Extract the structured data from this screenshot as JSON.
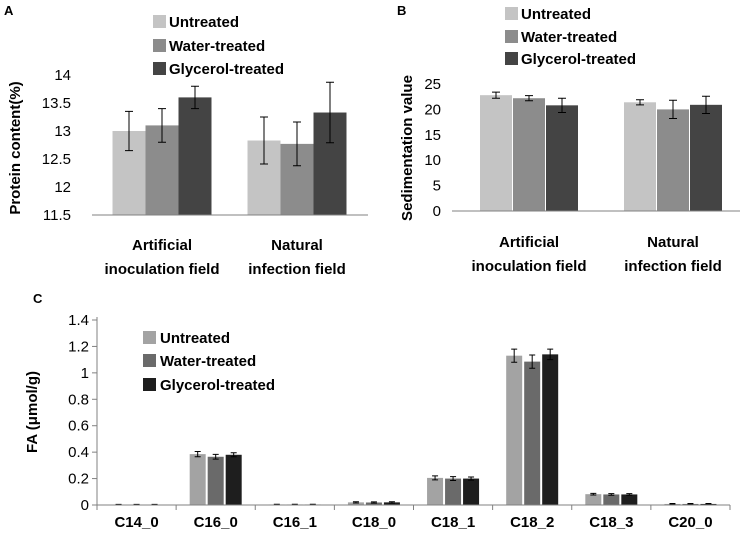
{
  "chart_data": [
    {
      "type": "bar",
      "panel": "A",
      "title": "",
      "xlabel": "",
      "ylabel": "Protein content(%)",
      "ylim": [
        11.5,
        14
      ],
      "yticks": [
        "11.5",
        "12",
        "12.5",
        "13",
        "13.5",
        "14"
      ],
      "categories": [
        [
          "Artificial",
          "inoculation field"
        ],
        [
          "Natural",
          "infection field"
        ]
      ],
      "series": [
        {
          "name": "Untreated",
          "color": "#c4c4c4",
          "values": [
            13.0,
            12.83
          ],
          "errors": [
            0.35,
            0.42
          ]
        },
        {
          "name": "Water-treated",
          "color": "#8c8c8c",
          "values": [
            13.1,
            12.77
          ],
          "errors": [
            0.3,
            0.39
          ]
        },
        {
          "name": "Glycerol-treated",
          "color": "#444444",
          "values": [
            13.6,
            13.33
          ],
          "errors": [
            0.2,
            0.54
          ]
        }
      ],
      "legend": "top"
    },
    {
      "type": "bar",
      "panel": "B",
      "title": "",
      "xlabel": "",
      "ylabel": "Sedimentation value",
      "ylim": [
        0,
        25
      ],
      "yticks": [
        "0",
        "5",
        "10",
        "15",
        "20",
        "25"
      ],
      "categories": [
        [
          "Artificial",
          "inoculation field"
        ],
        [
          "Natural",
          "infection field"
        ]
      ],
      "series": [
        {
          "name": "Untreated",
          "color": "#c4c4c4",
          "values": [
            22.8,
            21.4
          ],
          "errors": [
            0.6,
            0.5
          ]
        },
        {
          "name": "Water-treated",
          "color": "#8c8c8c",
          "values": [
            22.2,
            20.0
          ],
          "errors": [
            0.5,
            1.8
          ]
        },
        {
          "name": "Glycerol-treated",
          "color": "#444444",
          "values": [
            20.8,
            20.9
          ],
          "errors": [
            1.4,
            1.7
          ]
        }
      ],
      "legend": "top"
    },
    {
      "type": "bar",
      "panel": "C",
      "title": "",
      "xlabel": "",
      "ylabel": "FA (μmol/g)",
      "ylim": [
        0,
        1.4
      ],
      "yticks": [
        "0",
        "0.2",
        "0.4",
        "0.6",
        "0.8",
        "1",
        "1.2",
        "1.4"
      ],
      "categories": [
        [
          "C14_0"
        ],
        [
          "C16_0"
        ],
        [
          "C16_1"
        ],
        [
          "C18_0"
        ],
        [
          "C18_1"
        ],
        [
          "C18_2"
        ],
        [
          "C18_3"
        ],
        [
          "C20_0"
        ]
      ],
      "series": [
        {
          "name": "Untreated",
          "color": "#a3a3a3",
          "values": [
            0.003,
            0.385,
            0.004,
            0.02,
            0.205,
            1.13,
            0.082,
            0.008
          ],
          "errors": [
            0.002,
            0.02,
            0.002,
            0.005,
            0.015,
            0.05,
            0.006,
            0.003
          ]
        },
        {
          "name": "Water-treated",
          "color": "#6a6a6a",
          "values": [
            0.003,
            0.365,
            0.004,
            0.019,
            0.2,
            1.085,
            0.08,
            0.008
          ],
          "errors": [
            0.002,
            0.018,
            0.002,
            0.005,
            0.015,
            0.05,
            0.006,
            0.003
          ]
        },
        {
          "name": "Glycerol-treated",
          "color": "#1e1e1e",
          "values": [
            0.003,
            0.38,
            0.004,
            0.02,
            0.2,
            1.14,
            0.08,
            0.008
          ],
          "errors": [
            0.002,
            0.015,
            0.002,
            0.005,
            0.012,
            0.04,
            0.006,
            0.003
          ]
        }
      ],
      "legend": "top-left"
    }
  ]
}
